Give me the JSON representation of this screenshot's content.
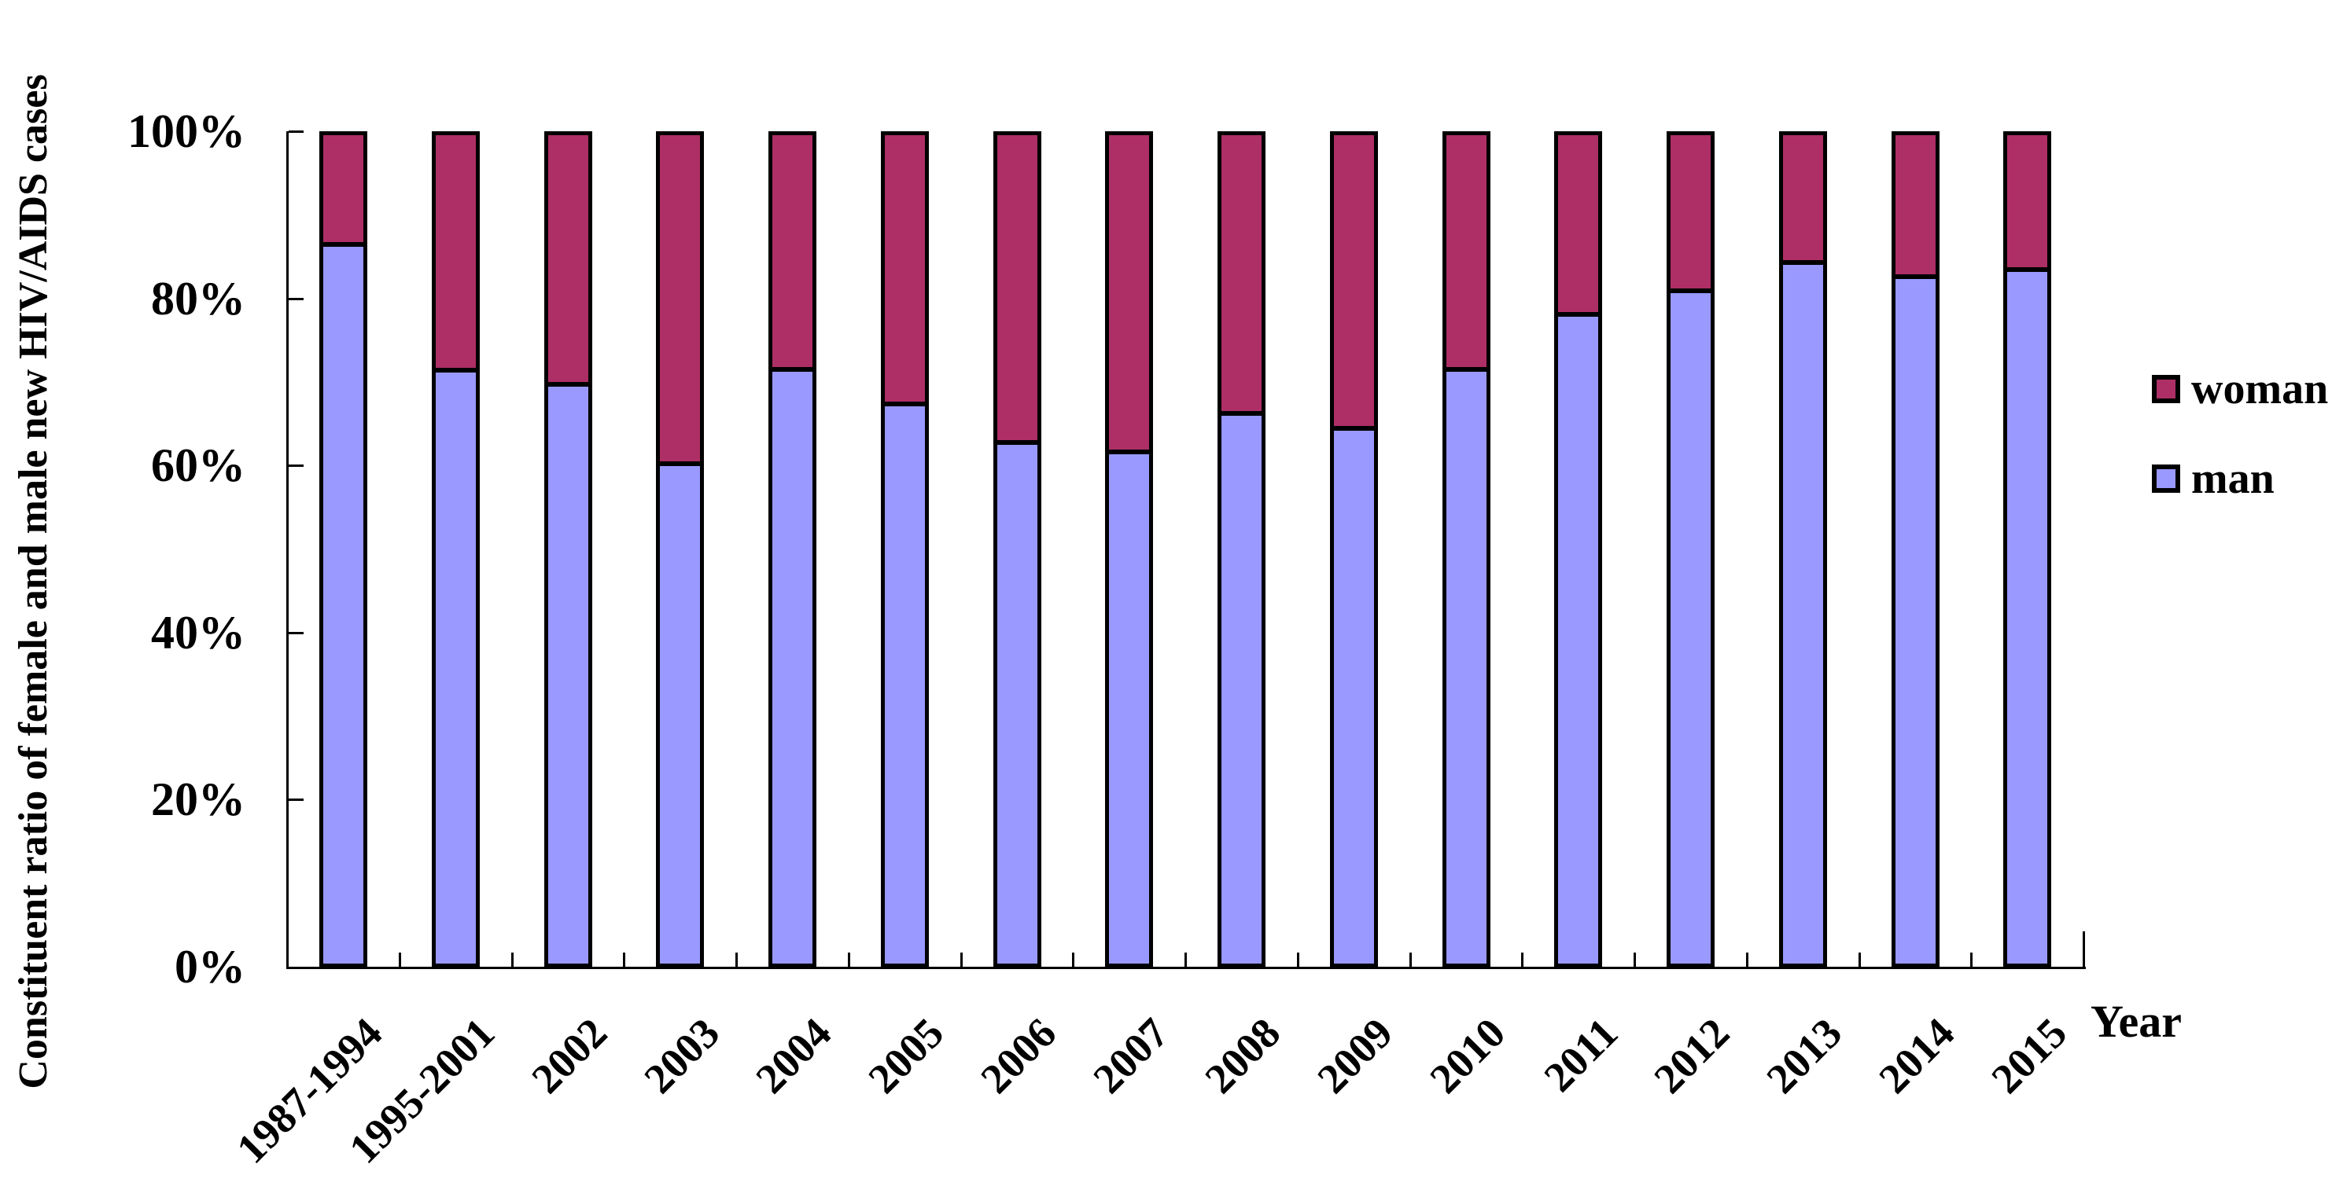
{
  "chart_data": {
    "type": "bar",
    "stacked": true,
    "orientation": "vertical",
    "title": "",
    "xlabel": "Year",
    "ylabel": "Constituent ratio of female and male new HIV/AIDS cases",
    "categories": [
      "1987-1994",
      "1995-2001",
      "2002",
      "2003",
      "2004",
      "2005",
      "2006",
      "2007",
      "2008",
      "2009",
      "2010",
      "2011",
      "2012",
      "2013",
      "2014",
      "2015"
    ],
    "series": [
      {
        "name": "woman",
        "color": "#AD2F66",
        "values": [
          13.5,
          28.7,
          30.4,
          39.9,
          28.6,
          32.7,
          37.4,
          38.5,
          33.9,
          35.7,
          28.6,
          21.9,
          19.1,
          15.7,
          17.4,
          16.5
        ]
      },
      {
        "name": "man",
        "color": "#9999FF",
        "values": [
          86.5,
          71.3,
          69.6,
          60.1,
          71.4,
          67.3,
          62.6,
          61.5,
          66.1,
          64.3,
          71.4,
          78.1,
          80.9,
          84.3,
          82.6,
          83.5
        ]
      }
    ],
    "y_ticks": [
      "0%",
      "20%",
      "40%",
      "60%",
      "80%",
      "100%"
    ],
    "ylim": [
      0,
      100
    ],
    "grid": false,
    "legend_position": "right",
    "legend_entries": [
      "woman",
      "man"
    ],
    "bar_outline_color": "#000000",
    "background_color": "#FFFFFF"
  }
}
